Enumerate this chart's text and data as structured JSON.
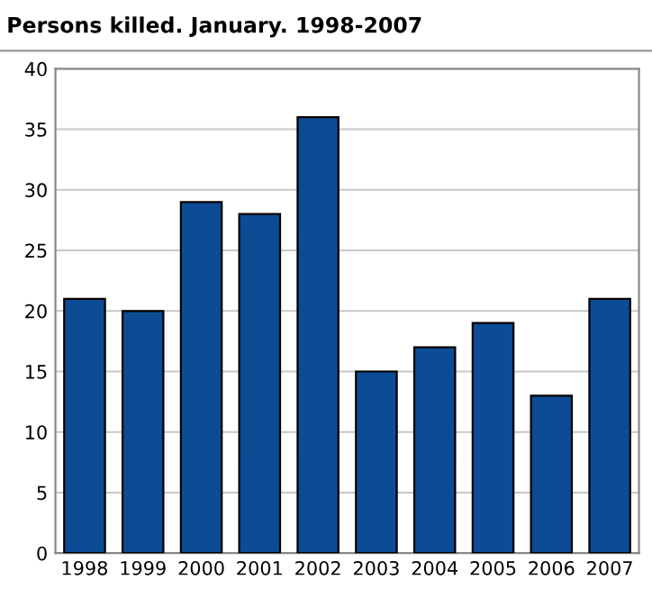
{
  "chart_data": {
    "type": "bar",
    "title": "Persons killed. January. 1998-2007",
    "categories": [
      "1998",
      "1999",
      "2000",
      "2001",
      "2002",
      "2003",
      "2004",
      "2005",
      "2006",
      "2007"
    ],
    "values": [
      21,
      20,
      29,
      28,
      36,
      15,
      17,
      19,
      13,
      21
    ],
    "color": "#0b4c95",
    "ylim": [
      0,
      40
    ],
    "yticks": [
      0,
      5,
      10,
      15,
      20,
      25,
      30,
      35,
      40
    ],
    "grid": "y",
    "legend": false
  }
}
